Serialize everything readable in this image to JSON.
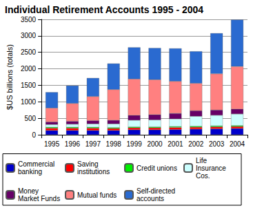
{
  "chart_data": {
    "type": "bar",
    "title": "Individual Retirement Accounts 1995 - 2004",
    "y_label": "$US billions (totals)",
    "categories": [
      "1995",
      "1996",
      "1997",
      "1998",
      "1999",
      "2000",
      "2001",
      "2002",
      "2003",
      "2004"
    ],
    "series": [
      {
        "name": "Commercial banking",
        "color": "#0000cc",
        "values": [
          130,
          130,
          130,
          130,
          150,
          150,
          160,
          170,
          180,
          190
        ]
      },
      {
        "name": "Saving institutions",
        "color": "#ff0000",
        "values": [
          70,
          70,
          70,
          60,
          60,
          60,
          60,
          60,
          60,
          60
        ]
      },
      {
        "name": "Credit unions",
        "color": "#00ee00",
        "values": [
          30,
          30,
          30,
          30,
          30,
          30,
          30,
          30,
          30,
          30
        ]
      },
      {
        "name": "Life Insurance Cos.",
        "color": "#ccffff",
        "values": [
          80,
          90,
          100,
          110,
          200,
          210,
          230,
          300,
          320,
          350
        ]
      },
      {
        "name": "Money Market Funds",
        "color": "#660066",
        "values": [
          80,
          90,
          100,
          110,
          150,
          160,
          170,
          170,
          160,
          150
        ]
      },
      {
        "name": "Mutual funds",
        "color": "#ff8080",
        "values": [
          420,
          540,
          730,
          930,
          1100,
          1060,
          970,
          830,
          1100,
          1290
        ]
      },
      {
        "name": "Self-directed accounts",
        "color": "#2a6ad0",
        "values": [
          480,
          540,
          560,
          790,
          960,
          960,
          1000,
          970,
          1230,
          1420
        ]
      }
    ],
    "ylim": [
      0,
      3500
    ],
    "yticks": [
      0,
      500,
      1000,
      1500,
      2000,
      2500,
      3000,
      3500
    ],
    "stacked": true,
    "grid": true,
    "legend": "bottom"
  }
}
